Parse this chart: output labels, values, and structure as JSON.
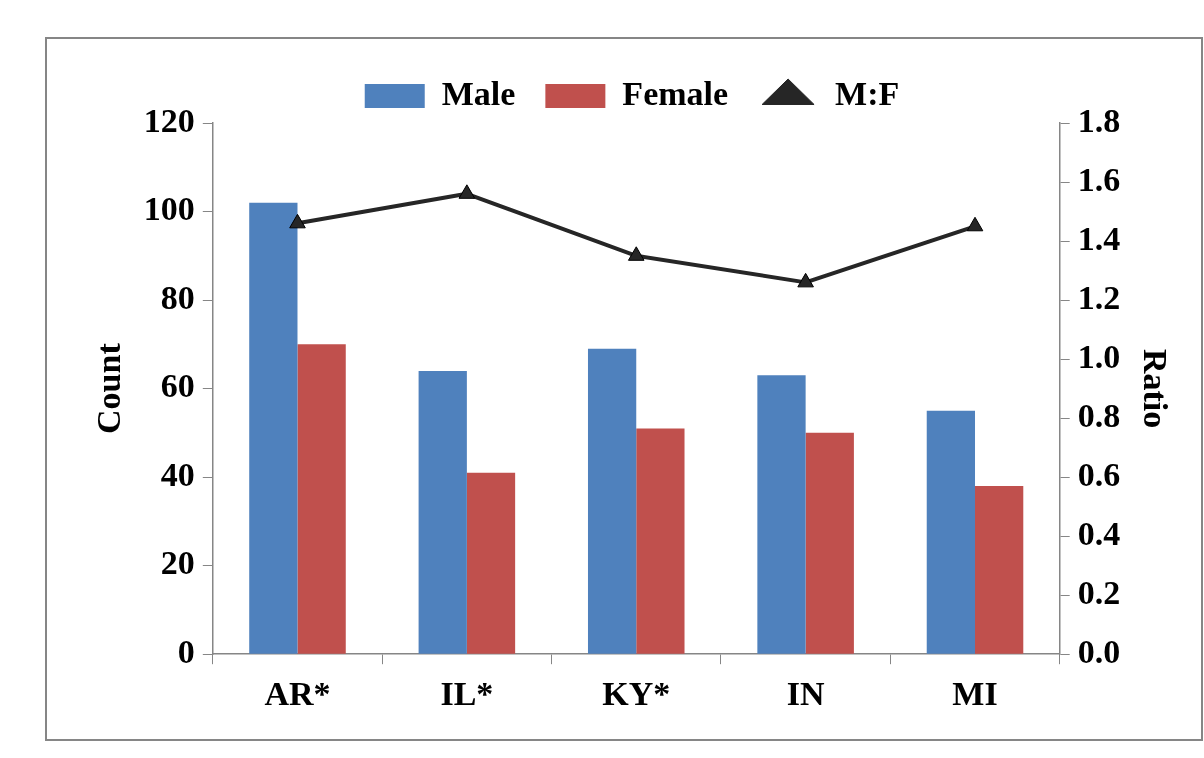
{
  "chart_data": {
    "type": "bar",
    "categories": [
      "AR*",
      "IL*",
      "KY*",
      "IN",
      "MI"
    ],
    "ylabel": "Count",
    "y2label": "Ratio",
    "series": [
      {
        "name": "Male",
        "color": "#4f81bd",
        "values": [
          102,
          64,
          69,
          63,
          55
        ]
      },
      {
        "name": "Female",
        "color": "#c0504d",
        "values": [
          70,
          41,
          51,
          50,
          38
        ]
      },
      {
        "name": "M:F",
        "type": "line",
        "axis": "y2",
        "color": "#262626",
        "marker": "triangle",
        "values": [
          1.46,
          1.56,
          1.35,
          1.26,
          1.45
        ]
      }
    ],
    "ylim": [
      0,
      120
    ],
    "yticks": [
      0,
      20,
      40,
      60,
      80,
      100,
      120
    ],
    "y2lim": [
      0,
      1.8
    ],
    "y2ticks": [
      {
        "value": 0,
        "label": "0.0"
      },
      {
        "value": 0.2,
        "label": "0.2"
      },
      {
        "value": 0.4,
        "label": "0.4"
      },
      {
        "value": 0.6,
        "label": "0.6"
      },
      {
        "value": 0.8,
        "label": "0.8"
      },
      {
        "value": 1,
        "label": "1.0"
      },
      {
        "value": 1.2,
        "label": "1.2"
      },
      {
        "value": 1.4,
        "label": "1.4"
      },
      {
        "value": 1.6,
        "label": "1.6"
      },
      {
        "value": 1.8,
        "label": "1.8"
      }
    ],
    "grid": false,
    "legend": "top"
  }
}
